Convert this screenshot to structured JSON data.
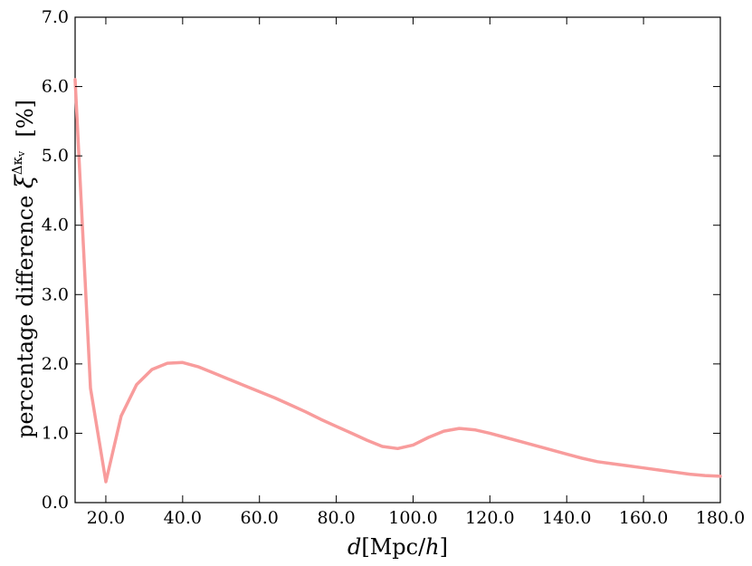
{
  "chart_data": {
    "type": "line",
    "xlabel_parts": {
      "var": "d",
      "unit_open": "[Mpc/",
      "unit_var": "h",
      "unit_close": "]"
    },
    "ylabel_parts": {
      "text": "percentage difference ",
      "symbol": "ξ",
      "sup": "Δκ",
      "sub": "v",
      "unit": "  [%]"
    },
    "xlim": [
      12,
      180
    ],
    "ylim": [
      0,
      7
    ],
    "xticks": [
      20,
      40,
      60,
      80,
      100,
      120,
      140,
      160,
      180
    ],
    "yticks": [
      0,
      1,
      2,
      3,
      4,
      5,
      6,
      7
    ],
    "xtick_labels": [
      "20.0",
      "40.0",
      "60.0",
      "80.0",
      "100.0",
      "120.0",
      "140.0",
      "160.0",
      "180.0"
    ],
    "ytick_labels": [
      "0.0",
      "1.0",
      "2.0",
      "3.0",
      "4.0",
      "5.0",
      "6.0",
      "7.0"
    ],
    "grid": false,
    "series": [
      {
        "color": "#f89c9c",
        "x": [
          12,
          16,
          20,
          24,
          28,
          32,
          36,
          40,
          44,
          48,
          52,
          56,
          60,
          64,
          68,
          72,
          76,
          80,
          84,
          88,
          92,
          96,
          100,
          104,
          108,
          112,
          116,
          120,
          124,
          128,
          132,
          136,
          140,
          144,
          148,
          152,
          156,
          160,
          164,
          168,
          172,
          176,
          180
        ],
        "y": [
          6.1,
          1.65,
          0.3,
          1.25,
          1.7,
          1.92,
          2.01,
          2.02,
          1.96,
          1.87,
          1.78,
          1.69,
          1.6,
          1.51,
          1.41,
          1.31,
          1.2,
          1.1,
          1.0,
          0.9,
          0.81,
          0.78,
          0.83,
          0.94,
          1.03,
          1.07,
          1.05,
          1.0,
          0.94,
          0.88,
          0.82,
          0.76,
          0.7,
          0.64,
          0.59,
          0.56,
          0.53,
          0.5,
          0.47,
          0.44,
          0.41,
          0.39,
          0.38
        ]
      }
    ]
  }
}
